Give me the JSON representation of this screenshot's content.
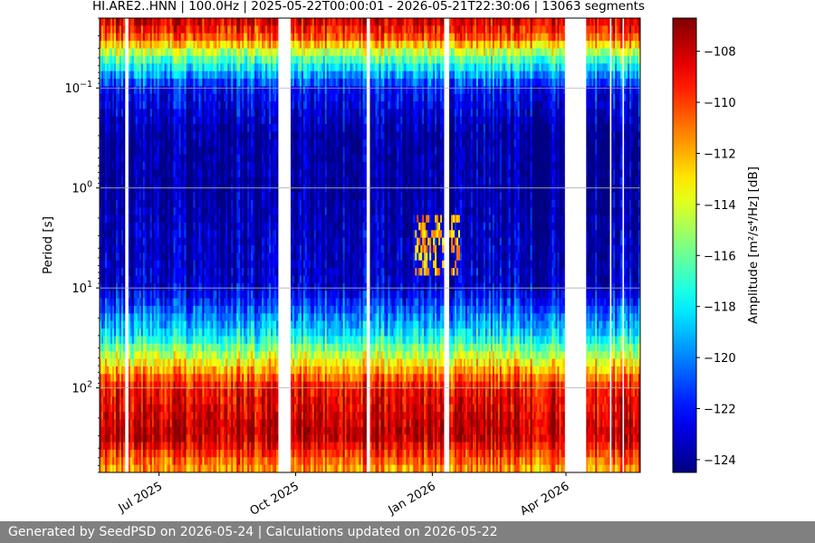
{
  "chart_data": {
    "type": "heatmap",
    "title": "HI.ARE2..HNN | 100.0Hz | 2025-05-22T00:00:01 - 2026-05-21T22:30:06 | 13063 segments",
    "xlabel": "",
    "ylabel": "Period [s]",
    "x_range": [
      "2025-05-22",
      "2026-05-21"
    ],
    "x_ticks": [
      {
        "date": "2025-07-01",
        "label": "Jul 2025"
      },
      {
        "date": "2025-10-01",
        "label": "Oct 2025"
      },
      {
        "date": "2026-01-01",
        "label": "Jan 2026"
      },
      {
        "date": "2026-04-01",
        "label": "Apr 2026"
      }
    ],
    "y_scale": "log",
    "y_inverted": true,
    "y_range": [
      0.02,
      700
    ],
    "y_ticks": [
      {
        "value": 0.1,
        "label": "10",
        "exp": "−1"
      },
      {
        "value": 1,
        "label": "10",
        "exp": "0"
      },
      {
        "value": 10,
        "label": "10",
        "exp": "1"
      },
      {
        "value": 100,
        "label": "10",
        "exp": "2"
      }
    ],
    "grid": true,
    "colorbar": {
      "label": "Amplitude [m²/s⁴/Hz] [dB]",
      "colormap": "jet",
      "range": [
        -124.5,
        -106.7
      ],
      "ticks": [
        -108,
        -110,
        -112,
        -114,
        -116,
        -118,
        -120,
        -122,
        -124
      ],
      "tick_labels": [
        "−108",
        "−110",
        "−112",
        "−114",
        "−116",
        "−118",
        "−120",
        "−122",
        "−124"
      ]
    },
    "data_gaps": [
      [
        "2025-06-08",
        "2025-06-11"
      ],
      [
        "2025-09-19",
        "2025-09-28"
      ],
      [
        "2025-11-18",
        "2025-11-20"
      ],
      [
        "2026-01-09",
        "2026-01-12"
      ],
      [
        "2026-02-27",
        "2026-02-28"
      ],
      [
        "2026-03-31",
        "2026-04-14"
      ],
      [
        "2026-04-30",
        "2026-05-01"
      ],
      [
        "2026-05-09",
        "2026-05-10"
      ]
    ],
    "amplitude_profile": {
      "periods": [
        0.02,
        0.03,
        0.05,
        0.1,
        0.3,
        1,
        3,
        10,
        30,
        50,
        100,
        300,
        700
      ],
      "db": [
        -108,
        -110,
        -116,
        -122,
        -124,
        -124,
        -123.5,
        -123,
        -118,
        -114,
        -109,
        -107.5,
        -112
      ]
    },
    "notable_features": [
      {
        "date_range": [
          "2025-12-20",
          "2026-01-20"
        ],
        "period_range": [
          2,
          8
        ],
        "db": -112
      }
    ]
  },
  "footer": {
    "text": "Generated by SeedPSD on 2026-05-24 | Calculations updated on 2026-05-22"
  }
}
